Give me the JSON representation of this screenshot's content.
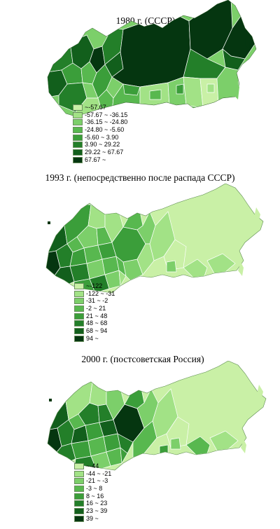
{
  "colors": {
    "c1": "#c9f0a6",
    "c2": "#a2e286",
    "c3": "#7ccf6a",
    "c4": "#58b84f",
    "c5": "#3b9e3a",
    "c6": "#237f29",
    "c7": "#125f1c",
    "c8": "#053610",
    "outline": "#ffffff"
  },
  "maps": [
    {
      "title": "1980 г. (СССР)",
      "legend": [
        {
          "label": "~-57.67",
          "color": "#c9f0a6"
        },
        {
          "label": "-57.67 ~ -36.15",
          "color": "#a2e286"
        },
        {
          "label": "-36.15 ~ -24.80",
          "color": "#7ccf6a"
        },
        {
          "label": "-24.80 ~ -5.60",
          "color": "#58b84f"
        },
        {
          "label": "-5.60 ~ 3.90",
          "color": "#3b9e3a"
        },
        {
          "label": "3.90 ~ 29.22",
          "color": "#237f29"
        },
        {
          "label": "29.22 ~ 67.67",
          "color": "#125f1c"
        },
        {
          "label": "67.67 ~",
          "color": "#053610"
        }
      ]
    },
    {
      "title": "1993 г. (непосредственно после распада СССР)",
      "legend": [
        {
          "label": "~-122",
          "color": "#c9f0a6"
        },
        {
          "label": "-122 ~ -31",
          "color": "#a2e286"
        },
        {
          "label": "-31 ~ -2",
          "color": "#7ccf6a"
        },
        {
          "label": "-2 ~ 21",
          "color": "#58b84f"
        },
        {
          "label": "21 ~ 48",
          "color": "#3b9e3a"
        },
        {
          "label": "48 ~ 68",
          "color": "#237f29"
        },
        {
          "label": "68 ~ 94",
          "color": "#125f1c"
        },
        {
          "label": "94 ~",
          "color": "#053610"
        }
      ]
    },
    {
      "title": "2000 г. (постсоветская Россия)",
      "legend": [
        {
          "label": "~-44",
          "color": "#c9f0a6"
        },
        {
          "label": "-44 ~ -21",
          "color": "#a2e286"
        },
        {
          "label": "-21 ~ -3",
          "color": "#7ccf6a"
        },
        {
          "label": "-3 ~ 8",
          "color": "#58b84f"
        },
        {
          "label": "8 ~ 16",
          "color": "#3b9e3a"
        },
        {
          "label": "16 ~ 23",
          "color": "#237f29"
        },
        {
          "label": "23 ~ 39",
          "color": "#125f1c"
        },
        {
          "label": "39 ~",
          "color": "#053610"
        }
      ]
    }
  ]
}
